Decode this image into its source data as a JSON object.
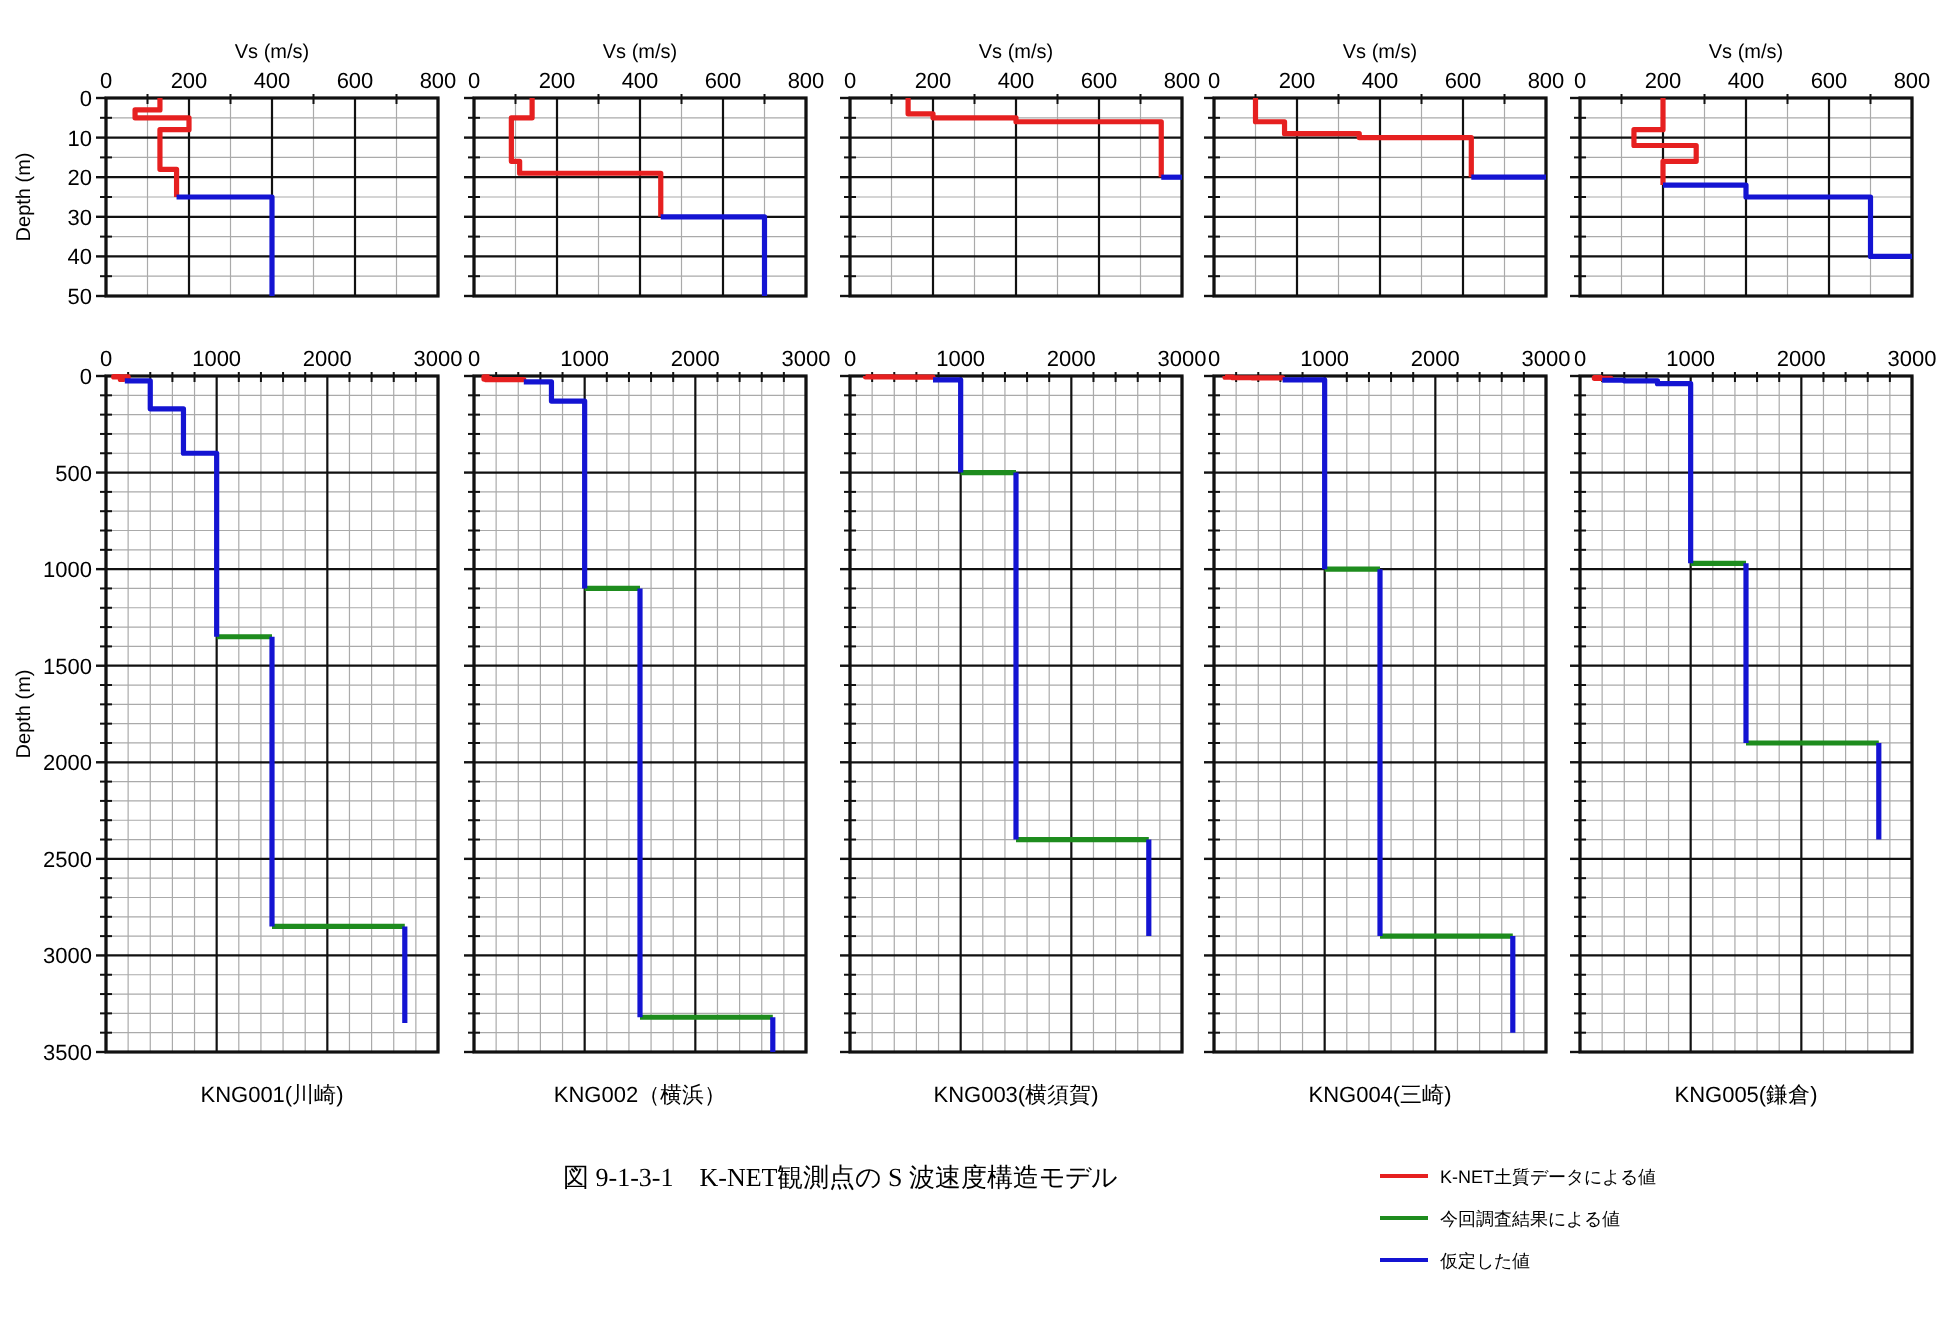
{
  "chart_data": [
    {
      "type": "line",
      "xlabel": "Vs (m/s)",
      "ylabel": "Depth (m)",
      "xlim": [
        0,
        800
      ],
      "xticks": [
        0,
        200,
        400,
        600,
        800
      ],
      "ylim": [
        50,
        0
      ],
      "yticks": [
        0,
        10,
        20,
        30,
        40,
        50
      ],
      "grid": true,
      "series": [
        {
          "color": "#e62020",
          "x": [
            130,
            130,
            70,
            70,
            200,
            200,
            130,
            130,
            170,
            170
          ],
          "values": [
            0,
            3,
            3,
            5,
            5,
            8,
            8,
            18,
            18,
            25
          ]
        },
        {
          "color": "#1414d2",
          "x": [
            170,
            400,
            400
          ],
          "values": [
            25,
            25,
            50
          ]
        }
      ]
    },
    {
      "type": "line",
      "xlabel": "Vs (m/s)",
      "xlim": [
        0,
        800
      ],
      "xticks": [
        0,
        200,
        400,
        600,
        800
      ],
      "ylim": [
        50,
        0
      ],
      "yticks": [
        0,
        10,
        20,
        30,
        40,
        50
      ],
      "grid": true,
      "tick_labels": "x",
      "series": [
        {
          "color": "#e62020",
          "x": [
            140,
            140,
            90,
            90,
            110,
            110,
            450,
            450
          ],
          "values": [
            0,
            5,
            5,
            16,
            16,
            19,
            19,
            30
          ]
        },
        {
          "color": "#1414d2",
          "x": [
            450,
            700,
            700
          ],
          "values": [
            30,
            30,
            50
          ]
        }
      ]
    },
    {
      "type": "line",
      "xlabel": "Vs (m/s)",
      "xlim": [
        0,
        800
      ],
      "xticks": [
        0,
        200,
        400,
        600,
        800
      ],
      "ylim": [
        50,
        0
      ],
      "yticks": [
        0,
        10,
        20,
        30,
        40,
        50
      ],
      "grid": true,
      "tick_labels": "x",
      "series": [
        {
          "color": "#e62020",
          "x": [
            140,
            140,
            200,
            200,
            400,
            400,
            750,
            750
          ],
          "values": [
            0,
            4,
            4,
            5,
            5,
            6,
            6,
            20
          ]
        },
        {
          "color": "#1414d2",
          "x": [
            750,
            800
          ],
          "values": [
            20,
            20
          ]
        }
      ]
    },
    {
      "type": "line",
      "xlabel": "Vs (m/s)",
      "xlim": [
        0,
        800
      ],
      "xticks": [
        0,
        200,
        400,
        600,
        800
      ],
      "ylim": [
        50,
        0
      ],
      "yticks": [
        0,
        10,
        20,
        30,
        40,
        50
      ],
      "grid": true,
      "tick_labels": "x",
      "series": [
        {
          "color": "#e62020",
          "x": [
            100,
            100,
            170,
            170,
            350,
            350,
            620,
            620
          ],
          "values": [
            0,
            6,
            6,
            9,
            9,
            10,
            10,
            20
          ]
        },
        {
          "color": "#1414d2",
          "x": [
            620,
            800
          ],
          "values": [
            20,
            20
          ]
        }
      ]
    },
    {
      "type": "line",
      "xlabel": "Vs (m/s)",
      "xlim": [
        0,
        800
      ],
      "xticks": [
        0,
        200,
        400,
        600,
        800
      ],
      "ylim": [
        50,
        0
      ],
      "yticks": [
        0,
        10,
        20,
        30,
        40,
        50
      ],
      "grid": true,
      "tick_labels": "x",
      "series": [
        {
          "color": "#e62020",
          "x": [
            200,
            200,
            130,
            130,
            280,
            280,
            200,
            200
          ],
          "values": [
            0,
            8,
            8,
            12,
            12,
            16,
            16,
            22
          ]
        },
        {
          "color": "#1414d2",
          "x": [
            200,
            400,
            400,
            700,
            700,
            800
          ],
          "values": [
            22,
            22,
            25,
            25,
            40,
            40
          ]
        }
      ]
    },
    {
      "type": "line",
      "xlabel": "KNG001(川崎)",
      "ylabel": "Depth (m)",
      "xlim": [
        0,
        3000
      ],
      "xticks": [
        0,
        1000,
        2000,
        3000
      ],
      "ylim": [
        3500,
        0
      ],
      "yticks": [
        0,
        500,
        1000,
        1500,
        2000,
        2500,
        3000,
        3500
      ],
      "grid": true,
      "series": [
        {
          "color": "#e62020",
          "x": [
            130,
            130,
            70,
            70,
            200,
            200,
            130,
            130,
            170,
            170
          ],
          "values": [
            0,
            3,
            3,
            5,
            5,
            8,
            8,
            18,
            18,
            25
          ]
        },
        {
          "color": "#1e8c1e",
          "x": [
            1000,
            1500,
            null,
            1500,
            2700
          ],
          "values": [
            1350,
            1350,
            null,
            2850,
            2850
          ]
        },
        {
          "color": "#1414d2",
          "x": [
            170,
            400,
            400,
            700,
            700,
            1000,
            1000,
            null,
            1500,
            1500,
            null,
            2700,
            2700
          ],
          "values": [
            25,
            25,
            170,
            170,
            400,
            400,
            1350,
            null,
            1350,
            2850,
            null,
            2850,
            3350
          ]
        }
      ]
    },
    {
      "type": "line",
      "xlabel": "KNG002（横浜）",
      "xlim": [
        0,
        3000
      ],
      "xticks": [
        0,
        1000,
        2000,
        3000
      ],
      "ylim": [
        3500,
        0
      ],
      "yticks": [
        0,
        500,
        1000,
        1500,
        2000,
        2500,
        3000,
        3500
      ],
      "grid": true,
      "tick_labels": "x",
      "series": [
        {
          "color": "#e62020",
          "x": [
            140,
            140,
            90,
            90,
            110,
            110,
            450,
            450
          ],
          "values": [
            0,
            5,
            5,
            16,
            16,
            19,
            19,
            30
          ]
        },
        {
          "color": "#1e8c1e",
          "x": [
            1000,
            1500,
            null,
            1500,
            2700
          ],
          "values": [
            1100,
            1100,
            null,
            3320,
            3320
          ]
        },
        {
          "color": "#1414d2",
          "x": [
            450,
            700,
            700,
            1000,
            1000,
            null,
            1500,
            1500,
            null,
            2700,
            2700
          ],
          "values": [
            30,
            30,
            130,
            130,
            1100,
            null,
            1100,
            3320,
            null,
            3320,
            3500
          ]
        }
      ]
    },
    {
      "type": "line",
      "xlabel": "KNG003(横須賀)",
      "xlim": [
        0,
        3000
      ],
      "xticks": [
        0,
        1000,
        2000,
        3000
      ],
      "ylim": [
        3500,
        0
      ],
      "yticks": [
        0,
        500,
        1000,
        1500,
        2000,
        2500,
        3000,
        3500
      ],
      "grid": true,
      "tick_labels": "x",
      "series": [
        {
          "color": "#e62020",
          "x": [
            140,
            140,
            200,
            200,
            400,
            400,
            750,
            750
          ],
          "values": [
            0,
            4,
            4,
            5,
            5,
            6,
            6,
            20
          ]
        },
        {
          "color": "#1e8c1e",
          "x": [
            1000,
            1500,
            null,
            1500,
            2700
          ],
          "values": [
            500,
            500,
            null,
            2400,
            2400
          ]
        },
        {
          "color": "#1414d2",
          "x": [
            750,
            1000,
            1000,
            null,
            1500,
            1500,
            null,
            2700,
            2700
          ],
          "values": [
            20,
            20,
            500,
            null,
            500,
            2400,
            null,
            2400,
            2900
          ]
        }
      ]
    },
    {
      "type": "line",
      "xlabel": "KNG004(三崎)",
      "xlim": [
        0,
        3000
      ],
      "xticks": [
        0,
        1000,
        2000,
        3000
      ],
      "ylim": [
        3500,
        0
      ],
      "yticks": [
        0,
        500,
        1000,
        1500,
        2000,
        2500,
        3000,
        3500
      ],
      "grid": true,
      "tick_labels": "x",
      "series": [
        {
          "color": "#e62020",
          "x": [
            100,
            100,
            170,
            170,
            350,
            350,
            620,
            620
          ],
          "values": [
            0,
            6,
            6,
            9,
            9,
            10,
            10,
            20
          ]
        },
        {
          "color": "#1e8c1e",
          "x": [
            1000,
            1500,
            null,
            1500,
            2700
          ],
          "values": [
            1000,
            1000,
            null,
            2900,
            2900
          ]
        },
        {
          "color": "#1414d2",
          "x": [
            620,
            1000,
            1000,
            null,
            1500,
            1500,
            null,
            2700,
            2700
          ],
          "values": [
            20,
            20,
            1000,
            null,
            1000,
            2900,
            null,
            2900,
            3400
          ]
        }
      ]
    },
    {
      "type": "line",
      "xlabel": "KNG005(鎌倉)",
      "xlim": [
        0,
        3000
      ],
      "xticks": [
        0,
        1000,
        2000,
        3000
      ],
      "ylim": [
        3500,
        0
      ],
      "yticks": [
        0,
        500,
        1000,
        1500,
        2000,
        2500,
        3000,
        3500
      ],
      "grid": true,
      "tick_labels": "x",
      "legend": "bottom left",
      "annotations": [
        "図 9-1-3-1　K-NET観測点の S 波速度構造モデル"
      ],
      "series": [
        {
          "name": "K-NET土質データによる値",
          "color": "#e62020",
          "x": [
            200,
            200,
            130,
            130,
            280,
            280,
            200,
            200
          ],
          "values": [
            0,
            8,
            8,
            12,
            12,
            16,
            16,
            22
          ]
        },
        {
          "name": "今回調査結果による値",
          "color": "#1e8c1e",
          "x": [
            1000,
            1500,
            null,
            1500,
            2700
          ],
          "values": [
            970,
            970,
            null,
            1900,
            1900
          ]
        },
        {
          "name": "仮定した値",
          "color": "#1414d2",
          "x": [
            200,
            400,
            400,
            700,
            700,
            1000,
            1000,
            null,
            1500,
            1500,
            null,
            2700,
            2700
          ],
          "values": [
            22,
            22,
            25,
            25,
            40,
            40,
            970,
            null,
            970,
            1900,
            null,
            1900,
            2400
          ]
        }
      ]
    }
  ]
}
